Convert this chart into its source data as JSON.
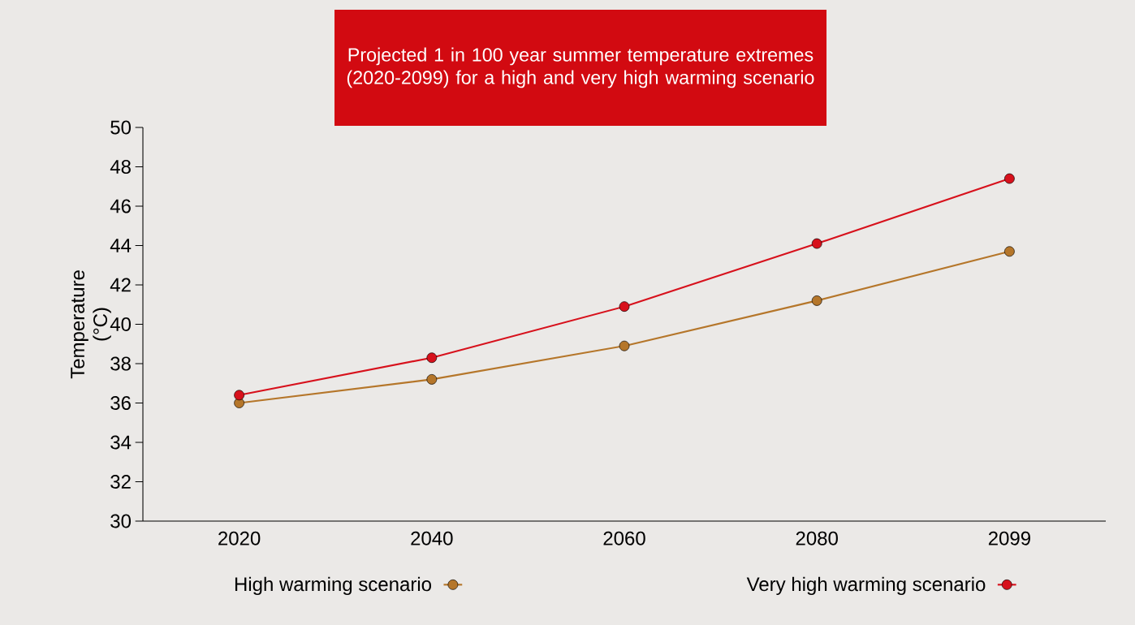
{
  "chart_data": {
    "type": "line",
    "title": "Projected 1 in 100 year summer temperature extremes (2020-2099) for a high and very high warming scenario",
    "ylabel": "Temperature (°C)",
    "categories": [
      "2020",
      "2040",
      "2060",
      "2080",
      "2099"
    ],
    "series": [
      {
        "name": "High warming scenario",
        "color": "#b5762a",
        "values": [
          36.0,
          37.2,
          38.9,
          41.2,
          43.7
        ]
      },
      {
        "name": "Very high warming scenario",
        "color": "#d7111c",
        "values": [
          36.4,
          38.3,
          40.9,
          44.1,
          47.4
        ]
      }
    ],
    "ylim": [
      30,
      50
    ],
    "yticks": [
      30,
      32,
      34,
      36,
      38,
      40,
      42,
      44,
      46,
      48,
      50
    ],
    "grid": false,
    "legend": "bottom",
    "marker": "circle",
    "line_style": "solid"
  }
}
